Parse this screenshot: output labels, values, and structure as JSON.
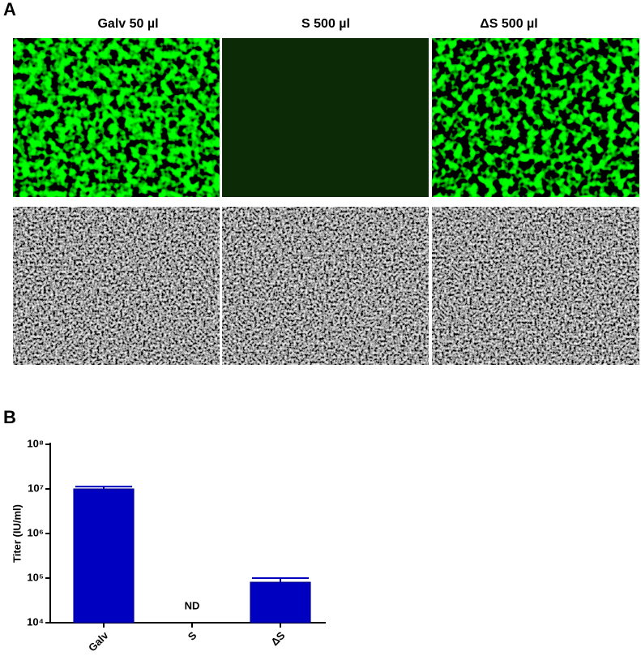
{
  "panel_a": {
    "label": "A",
    "columns": [
      "Galv 50 µl",
      "S 500 µl",
      "ΔS 500 µl"
    ]
  },
  "panel_b": {
    "label": "B"
  },
  "chart_data": {
    "type": "bar",
    "ylabel": "Titer (IU/ml)",
    "categories": [
      "Galv",
      "S",
      "ΔS"
    ],
    "values": [
      10000000,
      null,
      81000
    ],
    "errors": [
      1300000,
      null,
      19000
    ],
    "annotation": "ND",
    "color": "#0000c0",
    "log_scale": true,
    "ylim": [
      10000,
      100000000
    ],
    "yticks": [
      {
        "value": 10000,
        "label": "10⁴"
      },
      {
        "value": 100000,
        "label": "10⁵"
      },
      {
        "value": 1000000,
        "label": "10⁶"
      },
      {
        "value": 10000000,
        "label": "10⁷"
      },
      {
        "value": 100000000,
        "label": "10⁸"
      }
    ]
  }
}
